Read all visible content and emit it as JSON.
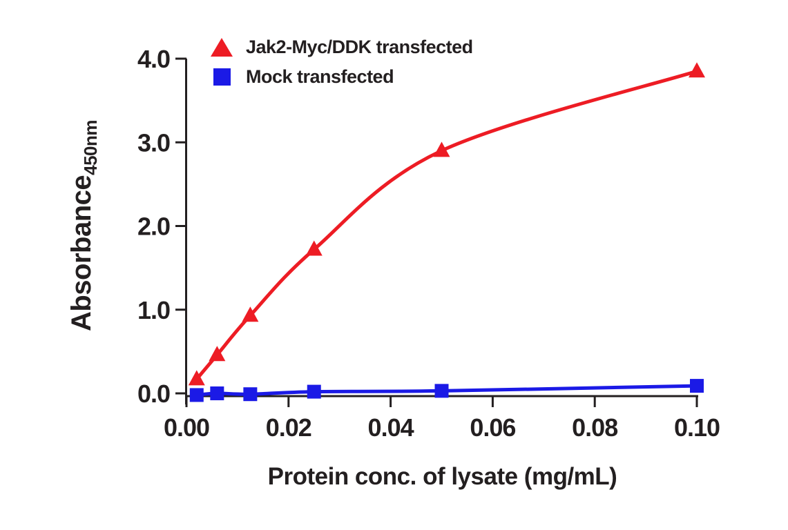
{
  "figure": {
    "background": "#ffffff",
    "ink_color": "#231f20"
  },
  "chart_data": {
    "type": "line",
    "title": "",
    "xlabel": "Protein conc. of lysate (mg/mL)",
    "ylabel_main": "Absorbance",
    "ylabel_sub": "450nm",
    "xlim": [
      0,
      0.1
    ],
    "ylim": [
      0,
      4.0
    ],
    "xticks": [
      "0.00",
      "0.02",
      "0.04",
      "0.06",
      "0.08",
      "0.10"
    ],
    "yticks": [
      "0.0",
      "1.0",
      "2.0",
      "3.0",
      "4.0"
    ],
    "grid": false,
    "legend_position": "top-left-inside",
    "x": [
      0.002,
      0.006,
      0.0125,
      0.025,
      0.05,
      0.1
    ],
    "series": [
      {
        "name": "Jak2-Myc/DDK transfected",
        "marker": "triangle",
        "color": "#ed1c24",
        "values": [
          0.17,
          0.46,
          0.93,
          1.72,
          2.9,
          3.85
        ]
      },
      {
        "name": "Mock transfected",
        "marker": "square",
        "color": "#1b1ae6",
        "values": [
          -0.02,
          0.0,
          -0.01,
          0.02,
          0.03,
          0.09
        ]
      }
    ]
  }
}
